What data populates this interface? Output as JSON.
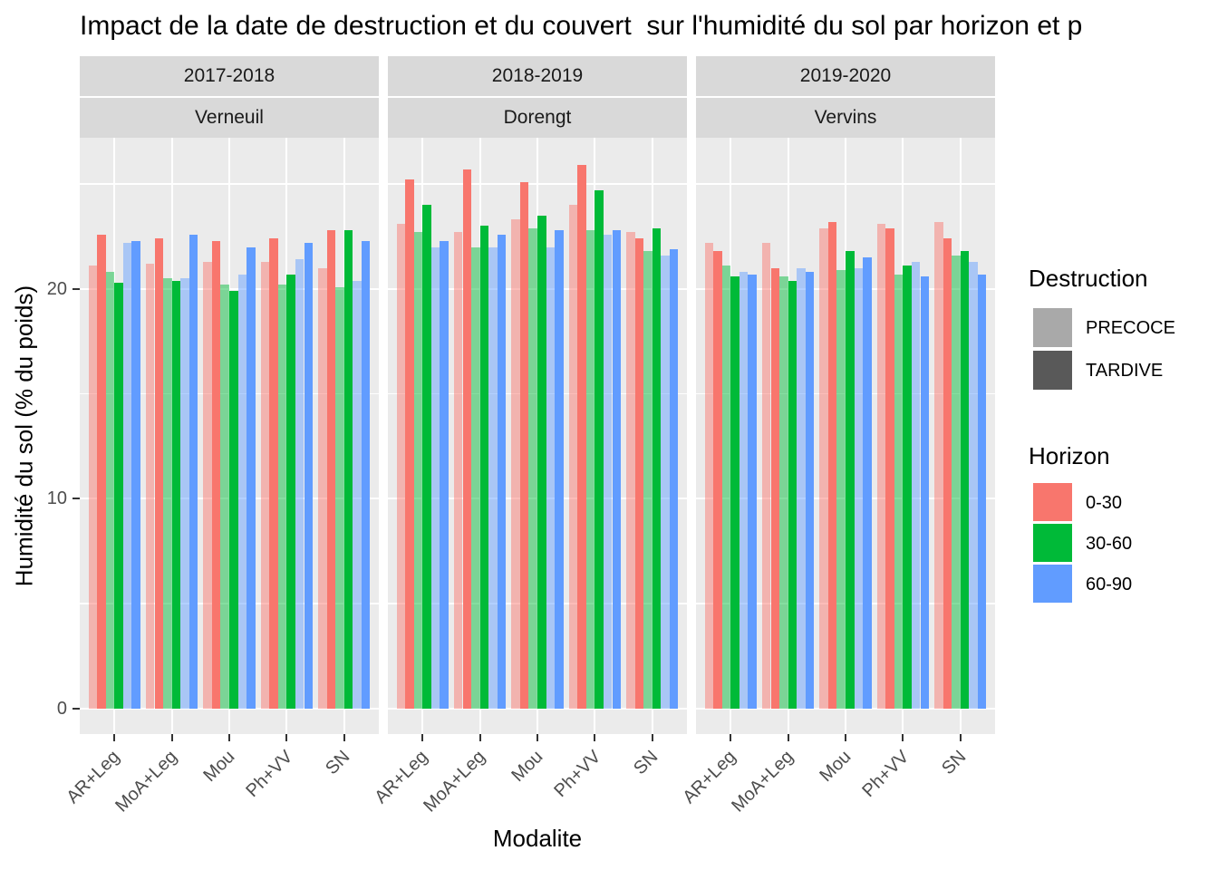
{
  "title": "Impact de la date de destruction et du couvert  sur l'humidité du sol par horizon et p",
  "axes": {
    "x_title": "Modalite",
    "y_title": "Humidité du sol (% du poids)"
  },
  "legend": {
    "destruction": {
      "title": "Destruction",
      "items": [
        {
          "label": "PRECOCE",
          "swatch": "#A9A9A9"
        },
        {
          "label": "TARDIVE",
          "swatch": "#595959"
        }
      ]
    },
    "horizon": {
      "title": "Horizon",
      "items": [
        {
          "label": "0-30",
          "swatch": "#F8766D"
        },
        {
          "label": "30-60",
          "swatch": "#00BA38"
        },
        {
          "label": "60-90",
          "swatch": "#619CFF"
        }
      ]
    }
  },
  "colors": {
    "horizon": [
      "#F8766D",
      "#00BA38",
      "#619CFF"
    ],
    "precoce_alpha": 0.48,
    "panel_bg": "#EBEBEB",
    "strip_bg": "#D9D9D9",
    "grid": "#FFFFFF",
    "tick": "#333333",
    "tick_text": "#4D4D4D"
  },
  "chart_data": {
    "type": "bar",
    "title": "Impact de la date de destruction et du couvert  sur l'humidité du sol par horizon et p",
    "xlabel": "Modalite",
    "ylabel": "Humidité du sol (% du poids)",
    "categories": [
      "AR+Leg",
      "MoA+Leg",
      "Mou",
      "Ph+VV",
      "SN"
    ],
    "group_keys": [
      "0-30 PRECOCE",
      "0-30 TARDIVE",
      "30-60 PRECOCE",
      "30-60 TARDIVE",
      "60-90 PRECOCE",
      "60-90 TARDIVE"
    ],
    "yticks": [
      0,
      10,
      20
    ],
    "yticks_minor": [
      5,
      15,
      25
    ],
    "ylim": [
      -1.2,
      27.2
    ],
    "legend_position": "right",
    "grid": "white major/minor on gray panel",
    "facets": [
      {
        "period": "2017-2018",
        "site": "Verneuil",
        "values": [
          [
            21.1,
            22.6,
            20.8,
            20.3,
            22.2,
            22.3
          ],
          [
            21.2,
            22.4,
            20.5,
            20.4,
            20.5,
            22.6
          ],
          [
            21.3,
            22.3,
            20.2,
            19.9,
            20.7,
            22.0
          ],
          [
            21.3,
            22.4,
            20.2,
            20.7,
            21.4,
            22.2
          ],
          [
            21.0,
            22.8,
            20.1,
            22.8,
            20.4,
            22.3
          ]
        ]
      },
      {
        "period": "2018-2019",
        "site": "Dorengt",
        "values": [
          [
            23.1,
            25.2,
            22.7,
            24.0,
            22.0,
            22.3
          ],
          [
            22.7,
            25.7,
            22.0,
            23.0,
            22.0,
            22.6
          ],
          [
            23.3,
            25.1,
            22.9,
            23.5,
            22.0,
            22.8
          ],
          [
            24.0,
            25.9,
            22.8,
            24.7,
            22.6,
            22.8
          ],
          [
            22.7,
            22.4,
            21.8,
            22.9,
            21.6,
            21.9
          ]
        ]
      },
      {
        "period": "2019-2020",
        "site": "Vervins",
        "values": [
          [
            22.2,
            21.8,
            21.1,
            20.6,
            20.8,
            20.7
          ],
          [
            22.2,
            21.0,
            20.6,
            20.4,
            21.0,
            20.8
          ],
          [
            22.9,
            23.2,
            20.9,
            21.8,
            21.0,
            21.5
          ],
          [
            23.1,
            22.9,
            20.7,
            21.1,
            21.3,
            20.6
          ],
          [
            23.2,
            22.4,
            21.6,
            21.8,
            21.3,
            20.7
          ]
        ]
      }
    ]
  }
}
